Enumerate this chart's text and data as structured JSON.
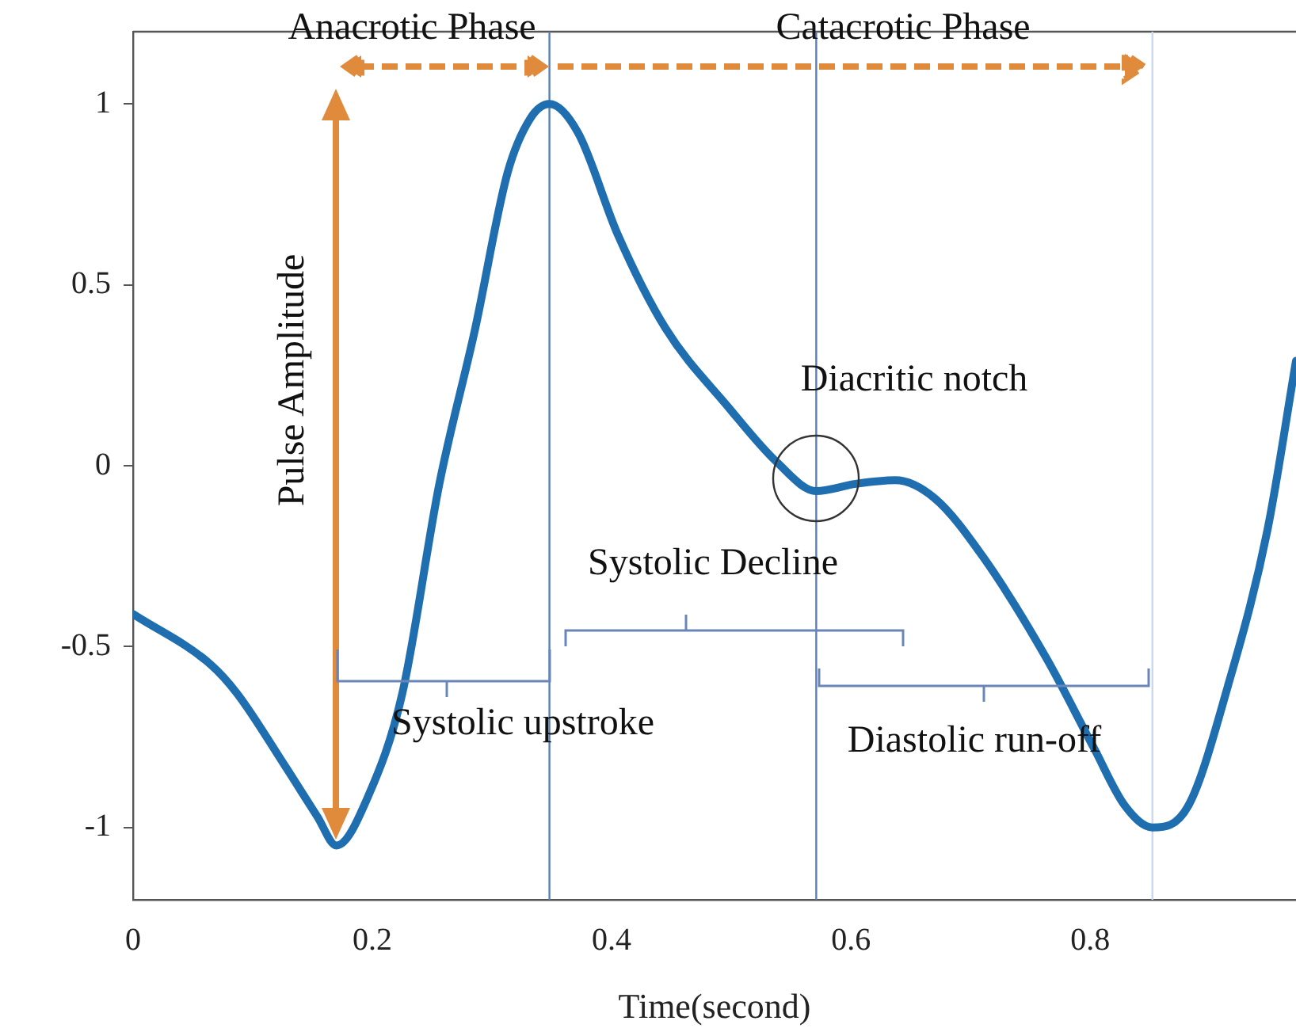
{
  "chart_data": {
    "type": "line",
    "xlabel": "Time(second)",
    "x": [
      0,
      0.065,
      0.087,
      0.127,
      0.154,
      0.17,
      0.197,
      0.225,
      0.256,
      0.286,
      0.313,
      0.332,
      0.348,
      0.372,
      0.405,
      0.445,
      0.498,
      0.538,
      0.571,
      0.604,
      0.637,
      0.67,
      0.71,
      0.763,
      0.803,
      0.829,
      0.852,
      0.882,
      0.915,
      0.948,
      0.972
    ],
    "series": [
      {
        "color": "#1f6fb0",
        "values": [
          -0.41,
          -0.55,
          -0.63,
          -0.83,
          -0.97,
          -1.05,
          -0.91,
          -0.63,
          -0.05,
          0.38,
          0.81,
          0.96,
          1.0,
          0.92,
          0.64,
          0.38,
          0.16,
          0.01,
          -0.07,
          -0.05,
          -0.04,
          -0.09,
          -0.25,
          -0.53,
          -0.78,
          -0.94,
          -1.0,
          -0.94,
          -0.61,
          -0.18,
          0.29
        ]
      }
    ],
    "xlim": [
      0,
      0.972
    ],
    "xticks": [
      0,
      0.2,
      0.4,
      0.6,
      0.8
    ],
    "ylim": [
      -1.2,
      1.2
    ],
    "yticks": [
      -1,
      -0.5,
      0,
      0.5,
      1
    ],
    "ref_lines": [
      {
        "axis": "x",
        "value": 0.348,
        "color": "#5a7fb8"
      },
      {
        "axis": "x",
        "value": 0.571,
        "color": "#5a7fb8"
      },
      {
        "axis": "x",
        "value": 0.852,
        "color": "#c8d8ee"
      }
    ],
    "annotations": [
      "Anacrotic Phase",
      "Catacrotic Phase",
      "Pulse Amplitude",
      "Diacritic notch",
      "Systolic Decline",
      "Systolic upstroke",
      "Diastolic run-off"
    ],
    "grid": false,
    "legend": false,
    "marker": "none",
    "line_style": "solid"
  }
}
